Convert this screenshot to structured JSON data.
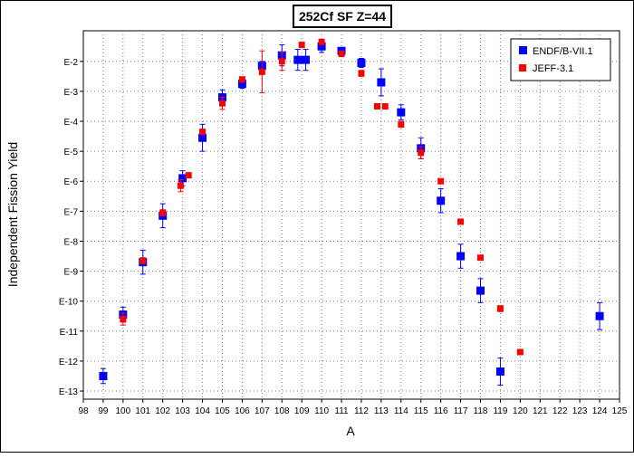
{
  "chart_data": {
    "type": "scatter",
    "title": "252Cf SF Z=44",
    "xlabel": "A",
    "ylabel": "Independent Fission Yield",
    "xlim": [
      98,
      125
    ],
    "ylim_log10": [
      -13.2,
      1.2
    ],
    "y_scale": "log",
    "grid": true,
    "legend_position": "top-right",
    "x_ticks": [
      98,
      99,
      100,
      101,
      102,
      103,
      104,
      105,
      106,
      107,
      108,
      109,
      110,
      111,
      112,
      113,
      114,
      115,
      116,
      117,
      118,
      119,
      120,
      121,
      122,
      123,
      124,
      125
    ],
    "y_ticks": [
      {
        "value": -2,
        "label": "E-2"
      },
      {
        "value": -3,
        "label": "E-3"
      },
      {
        "value": -4,
        "label": "E-4"
      },
      {
        "value": -5,
        "label": "E-5"
      },
      {
        "value": -6,
        "label": "E-6"
      },
      {
        "value": -7,
        "label": "E-7"
      },
      {
        "value": -8,
        "label": "E-8"
      },
      {
        "value": -9,
        "label": "E-9"
      },
      {
        "value": -10,
        "label": "E-10"
      },
      {
        "value": -11,
        "label": "E-11"
      },
      {
        "value": -12,
        "label": "E-12"
      },
      {
        "value": -13,
        "label": "E-13"
      }
    ],
    "series": [
      {
        "name": "ENDF/B-VII.1",
        "color": "#0000ff",
        "marker": "square",
        "points": [
          {
            "x": 99,
            "y": -12.5,
            "err": 0.25
          },
          {
            "x": 100,
            "y": -10.45,
            "err": 0.25
          },
          {
            "x": 101,
            "y": -8.7,
            "err": 0.4
          },
          {
            "x": 102,
            "y": -7.15,
            "err": 0.4
          },
          {
            "x": 103,
            "y": -5.9,
            "err": 0.25
          },
          {
            "x": 104,
            "y": -4.55,
            "err": 0.45
          },
          {
            "x": 105,
            "y": -3.2,
            "err": 0.25
          },
          {
            "x": 106,
            "y": -2.75,
            "err": 0.15
          },
          {
            "x": 107,
            "y": -2.15,
            "err": 0.15
          },
          {
            "x": 108,
            "y": -1.8,
            "err": 0.35
          },
          {
            "x": 108.8,
            "y": -1.95,
            "err": 0.35
          },
          {
            "x": 109.2,
            "y": -1.95,
            "err": 0.35
          },
          {
            "x": 110,
            "y": -1.5,
            "err": 0.2
          },
          {
            "x": 111,
            "y": -1.65,
            "err": 0.1
          },
          {
            "x": 112,
            "y": -2.05,
            "err": 0.15
          },
          {
            "x": 113,
            "y": -2.7,
            "err": 0.45
          },
          {
            "x": 114,
            "y": -3.7,
            "err": 0.25
          },
          {
            "x": 115,
            "y": -4.9,
            "err": 0.35
          },
          {
            "x": 116,
            "y": -6.65,
            "err": 0.4
          },
          {
            "x": 117,
            "y": -8.5,
            "err": 0.4
          },
          {
            "x": 118,
            "y": -9.65,
            "err": 0.4
          },
          {
            "x": 119,
            "y": -12.35,
            "err": 0.45
          },
          {
            "x": 124,
            "y": -10.5,
            "err": 0.45
          }
        ]
      },
      {
        "name": "JEFF-3.1",
        "color": "#ff0000",
        "marker": "square",
        "points": [
          {
            "x": 100,
            "y": -10.6,
            "err": 0.2
          },
          {
            "x": 101,
            "y": -8.65,
            "err": 0.1
          },
          {
            "x": 102,
            "y": -7.05,
            "err": 0.1
          },
          {
            "x": 102.9,
            "y": -6.15,
            "err": 0.2
          },
          {
            "x": 103.3,
            "y": -5.8,
            "err": 0.05
          },
          {
            "x": 104,
            "y": -4.35,
            "err": 0.05
          },
          {
            "x": 105,
            "y": -3.4,
            "err": 0.2
          },
          {
            "x": 106,
            "y": -2.6,
            "err": 0.05
          },
          {
            "x": 107,
            "y": -2.35,
            "err": 0.7
          },
          {
            "x": 108,
            "y": -2.0,
            "err": 0.3
          },
          {
            "x": 109,
            "y": -1.45,
            "err": 0.05
          },
          {
            "x": 110,
            "y": -1.35,
            "err": 0.05
          },
          {
            "x": 111,
            "y": -1.75,
            "err": 0.05
          },
          {
            "x": 112,
            "y": -2.4,
            "err": 0.1
          },
          {
            "x": 112.8,
            "y": -3.5,
            "err": 0.05
          },
          {
            "x": 113.2,
            "y": -3.5,
            "err": 0.05
          },
          {
            "x": 114,
            "y": -4.1,
            "err": 0.1
          },
          {
            "x": 115,
            "y": -5.05,
            "err": 0.2
          },
          {
            "x": 116,
            "y": -6.0,
            "err": 0.05
          },
          {
            "x": 117,
            "y": -7.35,
            "err": 0.05
          },
          {
            "x": 118,
            "y": -8.55,
            "err": 0.05
          },
          {
            "x": 119,
            "y": -10.25,
            "err": 0.1
          },
          {
            "x": 120,
            "y": -11.7,
            "err": 0.05
          }
        ]
      }
    ]
  }
}
